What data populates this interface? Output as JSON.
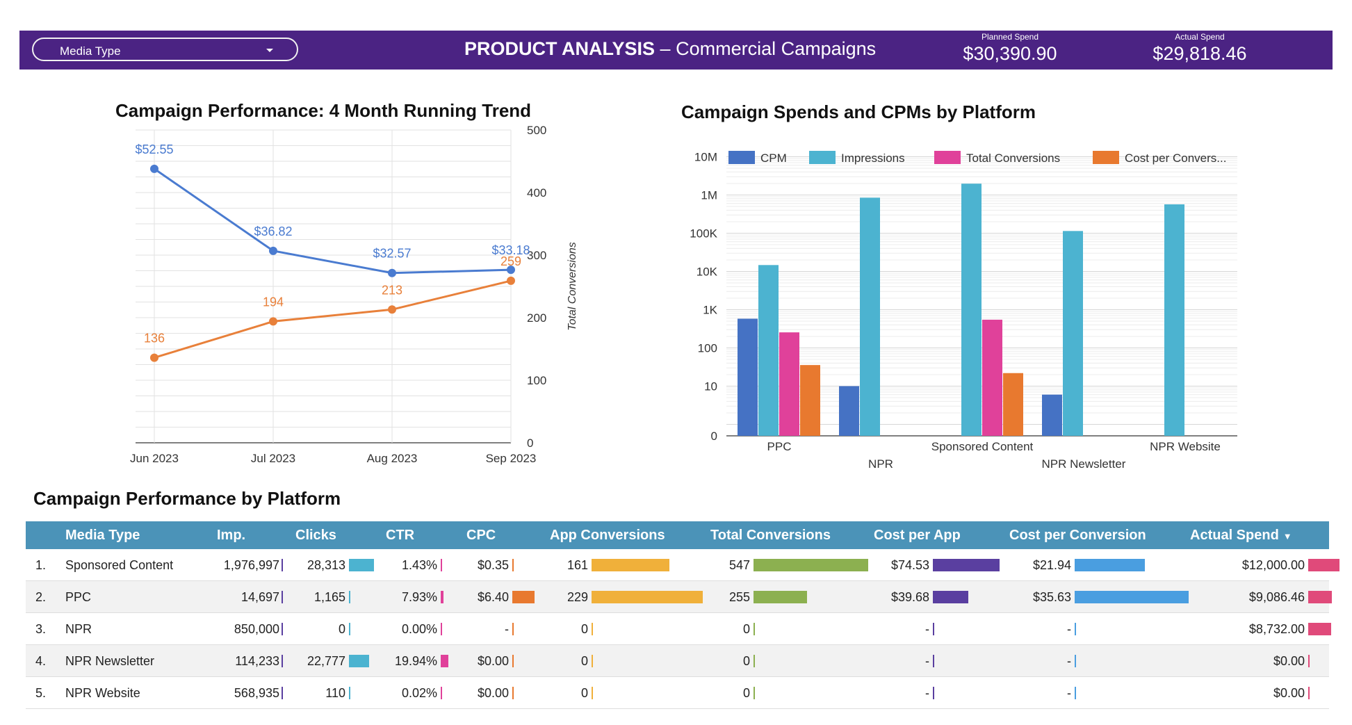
{
  "header": {
    "filter_label": "Media Type",
    "title_bold": "PRODUCT ANALYSIS",
    "title_sep": " – ",
    "title_rest": "Commercial Campaigns",
    "planned_spend_label": "Planned Spend",
    "planned_spend_value": "$30,390.90",
    "actual_spend_label": "Actual Spend",
    "actual_spend_value": "$29,818.46"
  },
  "colors": {
    "header_bg": "#4b2383",
    "table_header": "#4b93b8",
    "line_spend": "#4a7bd0",
    "line_conversions": "#e8803a",
    "cpm": "#4572c4",
    "impressions": "#4cb3d0",
    "total_conversions": "#e0419a",
    "cost_per_conversion": "#e8792f"
  },
  "chart_data": [
    {
      "type": "line",
      "title": "Campaign Performance: 4 Month Running Trend",
      "x": [
        "Jun 2023",
        "Jul 2023",
        "Aug 2023",
        "Sep 2023"
      ],
      "right_axis_label": "Total Conversions",
      "right_ylim": [
        0,
        500
      ],
      "right_ticks": [
        "500",
        "400",
        "300",
        "200",
        "100",
        "0"
      ],
      "grid": true,
      "series": [
        {
          "values": [
            52.55,
            36.82,
            32.57,
            33.18
          ],
          "labels": [
            "$52.55",
            "$36.82",
            "$32.57",
            "$33.18"
          ],
          "ylim": [
            0,
            60
          ]
        },
        {
          "name": "Total Conversions",
          "values": [
            136,
            194,
            213,
            259
          ],
          "labels": [
            "136",
            "194",
            "213",
            "259"
          ],
          "ylim": [
            0,
            500
          ]
        }
      ]
    },
    {
      "type": "bar",
      "title": "Campaign Spends and CPMs by Platform",
      "scale": "log",
      "y_ticks": [
        "10M",
        "1M",
        "100K",
        "10K",
        "1K",
        "100",
        "10",
        "0"
      ],
      "legend_position": "top",
      "categories": [
        "PPC",
        "NPR",
        "Sponsored Content",
        "NPR Newsletter",
        "NPR Website"
      ],
      "series": [
        {
          "name": "CPM",
          "values": [
            580,
            10,
            null,
            6,
            null
          ]
        },
        {
          "name": "Impressions",
          "values": [
            14697,
            850000,
            1976997,
            114233,
            568935
          ]
        },
        {
          "name": "Total Conversions",
          "values": [
            255,
            null,
            547,
            null,
            null
          ]
        },
        {
          "name": "Cost per Convers...",
          "values": [
            35.63,
            null,
            21.94,
            null,
            null
          ]
        }
      ]
    }
  ],
  "table": {
    "title": "Campaign Performance by Platform",
    "columns": [
      "Media Type",
      "Imp.",
      "Clicks",
      "CTR",
      "CPC",
      "App Conversions",
      "Total Conversions",
      "Cost per App",
      "Cost per Conversion",
      "Actual Spend"
    ],
    "sort_indicator": "▼",
    "bar_colors": {
      "clicks": "#4cb3d0",
      "ctr": "#e0419a",
      "cpc": "#e8792f",
      "app": "#f0b03a",
      "total": "#8cb050",
      "cost_app": "#5a3fa0",
      "cost_conv": "#4a9ee0",
      "spend": "#e04a7a"
    },
    "rows": [
      {
        "idx": "1.",
        "media": "Sponsored Content",
        "imp": "1,976,997",
        "clicks": "28,313",
        "clicks_v": 28313,
        "ctr": "1.43%",
        "ctr_v": 1.43,
        "cpc": "$0.35",
        "cpc_v": 0.35,
        "app": "161",
        "app_v": 161,
        "total": "547",
        "total_v": 547,
        "cost_app": "$74.53",
        "cost_app_v": 74.53,
        "cost_conv": "$21.94",
        "cost_conv_v": 21.94,
        "spend": "$12,000.00",
        "spend_v": 12000
      },
      {
        "idx": "2.",
        "media": "PPC",
        "imp": "14,697",
        "clicks": "1,165",
        "clicks_v": 1165,
        "ctr": "7.93%",
        "ctr_v": 7.93,
        "cpc": "$6.40",
        "cpc_v": 6.4,
        "app": "229",
        "app_v": 229,
        "total": "255",
        "total_v": 255,
        "cost_app": "$39.68",
        "cost_app_v": 39.68,
        "cost_conv": "$35.63",
        "cost_conv_v": 35.63,
        "spend": "$9,086.46",
        "spend_v": 9086.46
      },
      {
        "idx": "3.",
        "media": "NPR",
        "imp": "850,000",
        "clicks": "0",
        "clicks_v": 0,
        "ctr": "0.00%",
        "ctr_v": 0,
        "cpc": "-",
        "cpc_v": 0,
        "app": "0",
        "app_v": 0,
        "total": "0",
        "total_v": 0,
        "cost_app": "-",
        "cost_app_v": 0,
        "cost_conv": "-",
        "cost_conv_v": 0,
        "spend": "$8,732.00",
        "spend_v": 8732
      },
      {
        "idx": "4.",
        "media": "NPR Newsletter",
        "imp": "114,233",
        "clicks": "22,777",
        "clicks_v": 22777,
        "ctr": "19.94%",
        "ctr_v": 19.94,
        "cpc": "$0.00",
        "cpc_v": 0,
        "app": "0",
        "app_v": 0,
        "total": "0",
        "total_v": 0,
        "cost_app": "-",
        "cost_app_v": 0,
        "cost_conv": "-",
        "cost_conv_v": 0,
        "spend": "$0.00",
        "spend_v": 0
      },
      {
        "idx": "5.",
        "media": "NPR Website",
        "imp": "568,935",
        "clicks": "110",
        "clicks_v": 110,
        "ctr": "0.02%",
        "ctr_v": 0.02,
        "cpc": "$0.00",
        "cpc_v": 0,
        "app": "0",
        "app_v": 0,
        "total": "0",
        "total_v": 0,
        "cost_app": "-",
        "cost_app_v": 0,
        "cost_conv": "-",
        "cost_conv_v": 0,
        "spend": "$0.00",
        "spend_v": 0
      }
    ]
  }
}
